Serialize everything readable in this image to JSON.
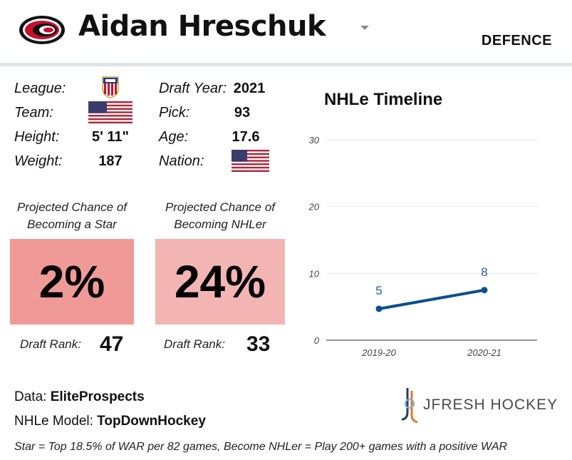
{
  "header": {
    "player_name": "Aidan Hreschuk",
    "position": "DEFENCE",
    "team_logo_icon": "hurricanes-logo-icon"
  },
  "info": {
    "league_label": "League:",
    "league_icon": "usa-hockey-ntdp-icon",
    "team_label": "Team:",
    "team_icon": "usa-flag-icon",
    "height_label": "Height:",
    "height_value": "5' 11\"",
    "weight_label": "Weight:",
    "weight_value": "187",
    "draft_year_label": "Draft Year:",
    "draft_year_value": "2021",
    "pick_label": "Pick:",
    "pick_value": "93",
    "age_label": "Age:",
    "age_value": "17.6",
    "nation_label": "Nation:",
    "nation_icon": "usa-flag-icon"
  },
  "projections": {
    "star": {
      "title_line1": "Projected Chance of",
      "title_line2": "Becoming a Star",
      "value": "2%",
      "color": "#f09a98",
      "rank_label": "Draft Rank:",
      "rank_value": "47"
    },
    "nhler": {
      "title_line1": "Projected Chance of",
      "title_line2": "Becoming NHLer",
      "value": "24%",
      "color": "#f3b5b4",
      "rank_label": "Draft Rank:",
      "rank_value": "33"
    }
  },
  "footer": {
    "data_label": "Data:",
    "data_value": "EliteProspects",
    "model_label": "NHLe Model:",
    "model_value": "TopDownHockey",
    "footnote": "Star = Top 18.5% of WAR per 82 games, Become NHLer = Play 200+ games with a positive WAR",
    "brand": "JFRESH HOCKEY",
    "brand_icon": "jfresh-hockey-logo-icon"
  },
  "chart_data": {
    "type": "line",
    "title": "NHLe Timeline",
    "categories": [
      "2019-20",
      "2020-21"
    ],
    "values": [
      4.7,
      7.5
    ],
    "data_labels": [
      "5",
      "8"
    ],
    "ylim": [
      0,
      30
    ],
    "yticks": [
      "0",
      "10",
      "20",
      "30"
    ],
    "grid": true,
    "line_color": "#0a4f8f",
    "label_color": "#2a5fa0"
  }
}
